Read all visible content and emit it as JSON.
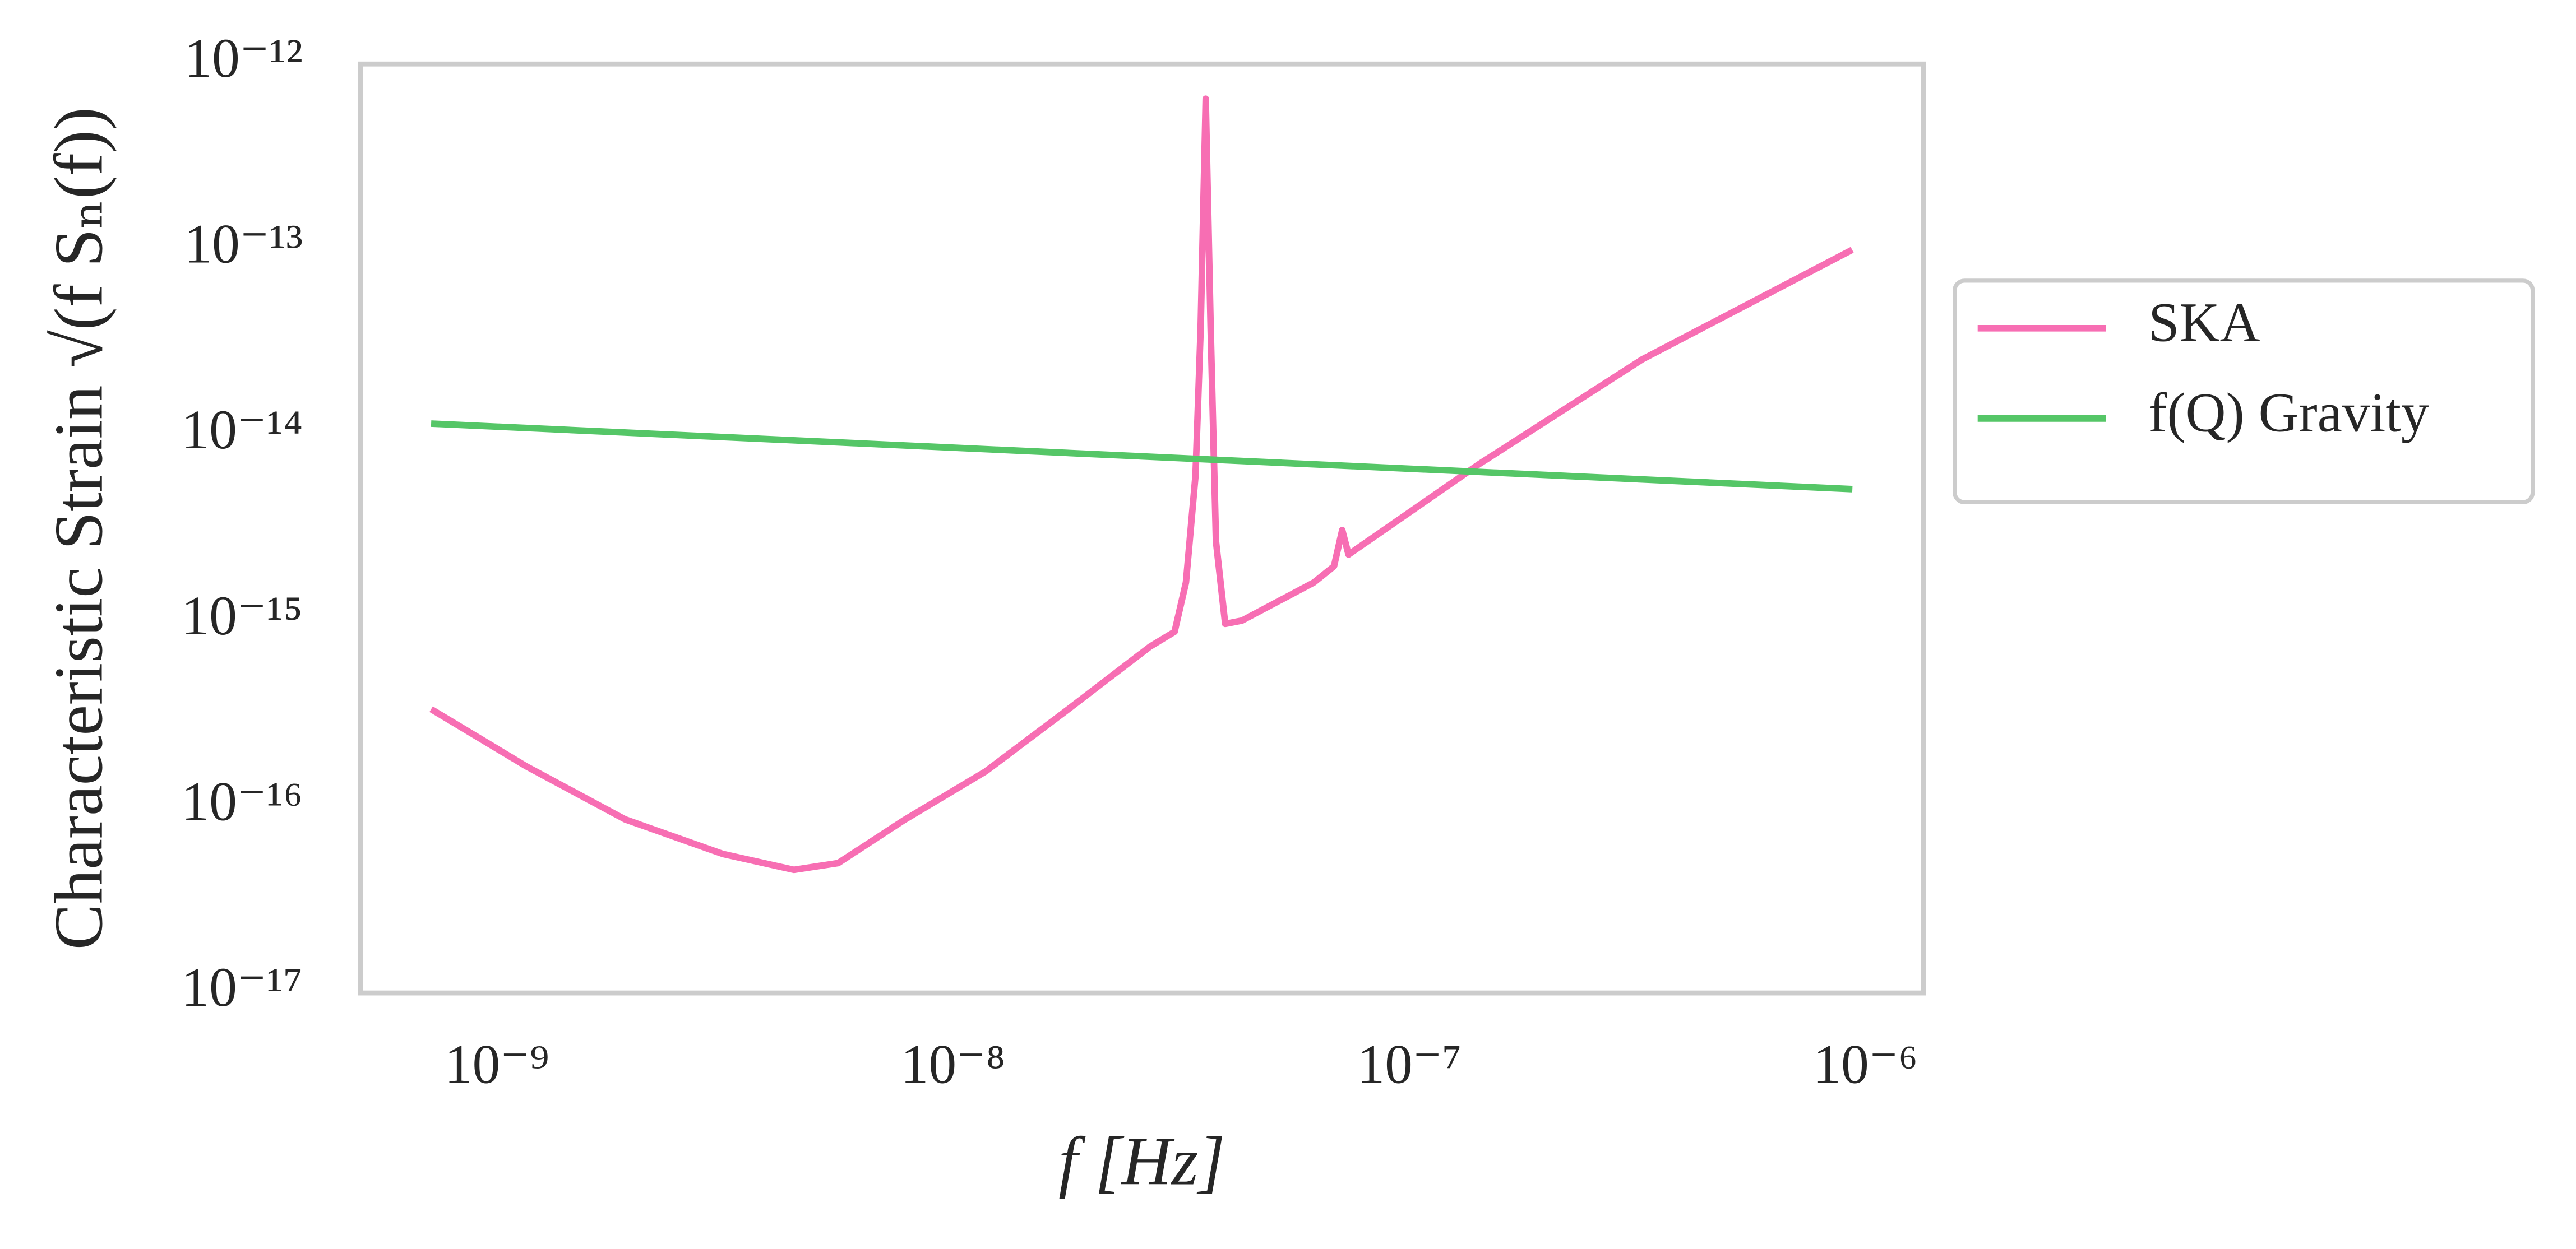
{
  "chart_data": {
    "type": "line",
    "xlabel": "f [Hz]",
    "ylabel": "Characteristic Strain √(f Sₙ(f))",
    "xscale": "log",
    "yscale": "log",
    "grid": false,
    "legend": "outside-right",
    "xlim": [
      5.02e-10,
      1.34e-06
    ],
    "ylim": [
      1e-17,
      1e-12
    ],
    "xticks": [
      {
        "value": 1e-09,
        "label": "10⁻⁹"
      },
      {
        "value": 1e-08,
        "label": "10⁻⁸"
      },
      {
        "value": 1e-07,
        "label": "10⁻⁷"
      },
      {
        "value": 1e-06,
        "label": "10⁻⁶"
      }
    ],
    "yticks": [
      {
        "value": 1e-17,
        "label": "10⁻¹⁷"
      },
      {
        "value": 1e-16,
        "label": "10⁻¹⁶"
      },
      {
        "value": 1e-15,
        "label": "10⁻¹⁵"
      },
      {
        "value": 1e-14,
        "label": "10⁻¹⁴"
      },
      {
        "value": 1e-13,
        "label": "10⁻¹³"
      },
      {
        "value": 1e-12,
        "label": "10⁻¹²"
      }
    ],
    "series": [
      {
        "name": "SKA",
        "color": "#f76eb3",
        "x": [
          7.18e-10,
          1.16e-09,
          1.91e-09,
          3.13e-09,
          4.48e-09,
          5.6e-09,
          7.8e-09,
          1.18e-08,
          1.79e-08,
          2.7e-08,
          3.06e-08,
          3.24e-08,
          3.4e-08,
          3.49e-08,
          3.58e-08,
          3.67e-08,
          3.77e-08,
          3.95e-08,
          4.3e-08,
          6.18e-08,
          6.84e-08,
          7.13e-08,
          7.36e-08,
          1.42e-07,
          3.24e-07,
          9.35e-07
        ],
        "values": [
          3.37e-16,
          1.66e-16,
          8.6e-17,
          5.6e-17,
          4.6e-17,
          5e-17,
          8.5e-17,
          1.56e-16,
          3.37e-16,
          7.3e-16,
          8.8e-16,
          1.62e-15,
          6.1e-15,
          3.8e-14,
          6.5e-13,
          3.8e-14,
          2.7e-15,
          9.7e-16,
          1.01e-15,
          1.62e-15,
          1.98e-15,
          3.1e-15,
          2.29e-15,
          7e-15,
          2.57e-14,
          1e-13
        ]
      },
      {
        "name": "f(Q) Gravity",
        "color": "#55c667",
        "x": [
          7.18e-10,
          9.36e-07
        ],
        "values": [
          1.16e-14,
          5.15e-15
        ]
      }
    ]
  }
}
